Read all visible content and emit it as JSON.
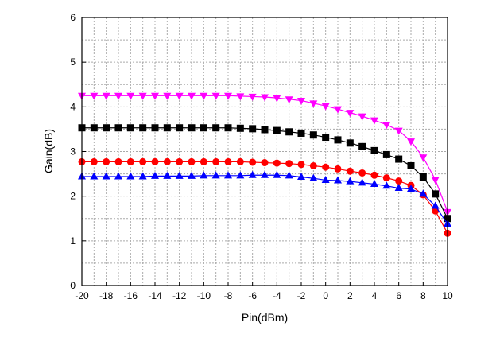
{
  "chart_data": {
    "type": "line",
    "title": "",
    "xlabel": "Pin(dBm)",
    "ylabel": "Gain(dB)",
    "xlim": [
      -20,
      10
    ],
    "ylim": [
      0,
      6
    ],
    "xticks": [
      -20,
      -18,
      -16,
      -14,
      -12,
      -10,
      -8,
      -6,
      -4,
      -2,
      0,
      2,
      4,
      6,
      8,
      10
    ],
    "yticks": [
      0,
      1,
      2,
      3,
      4,
      5,
      6
    ],
    "grid": true,
    "x": [
      -20,
      -19,
      -18,
      -17,
      -16,
      -15,
      -14,
      -13,
      -12,
      -11,
      -10,
      -9,
      -8,
      -7,
      -6,
      -5,
      -4,
      -3,
      -2,
      -1,
      0,
      1,
      2,
      3,
      4,
      5,
      6,
      7,
      8,
      9,
      10
    ],
    "series": [
      {
        "marker": "triangle-down",
        "color": "#ff00ff",
        "values": [
          4.25,
          4.25,
          4.25,
          4.25,
          4.25,
          4.25,
          4.25,
          4.25,
          4.25,
          4.25,
          4.25,
          4.25,
          4.25,
          4.24,
          4.23,
          4.22,
          4.2,
          4.17,
          4.14,
          4.08,
          4.02,
          3.95,
          3.87,
          3.79,
          3.7,
          3.6,
          3.47,
          3.23,
          2.87,
          2.37,
          1.65
        ]
      },
      {
        "marker": "square",
        "color": "#000000",
        "values": [
          3.53,
          3.53,
          3.53,
          3.53,
          3.53,
          3.53,
          3.53,
          3.53,
          3.53,
          3.53,
          3.53,
          3.53,
          3.53,
          3.52,
          3.51,
          3.49,
          3.47,
          3.44,
          3.41,
          3.37,
          3.32,
          3.26,
          3.19,
          3.11,
          3.02,
          2.93,
          2.83,
          2.68,
          2.43,
          2.05,
          1.5
        ]
      },
      {
        "marker": "circle",
        "color": "#ff0000",
        "values": [
          2.77,
          2.77,
          2.77,
          2.77,
          2.77,
          2.77,
          2.77,
          2.77,
          2.77,
          2.77,
          2.77,
          2.77,
          2.77,
          2.77,
          2.76,
          2.75,
          2.74,
          2.73,
          2.71,
          2.68,
          2.65,
          2.61,
          2.56,
          2.52,
          2.47,
          2.41,
          2.34,
          2.24,
          2.03,
          1.67,
          1.17
        ]
      },
      {
        "marker": "triangle-up",
        "color": "#0000ff",
        "values": [
          2.44,
          2.44,
          2.44,
          2.44,
          2.44,
          2.44,
          2.45,
          2.45,
          2.45,
          2.45,
          2.46,
          2.46,
          2.46,
          2.46,
          2.47,
          2.47,
          2.47,
          2.46,
          2.43,
          2.4,
          2.36,
          2.35,
          2.33,
          2.3,
          2.27,
          2.23,
          2.18,
          2.16,
          2.05,
          1.78,
          1.38
        ]
      }
    ]
  }
}
